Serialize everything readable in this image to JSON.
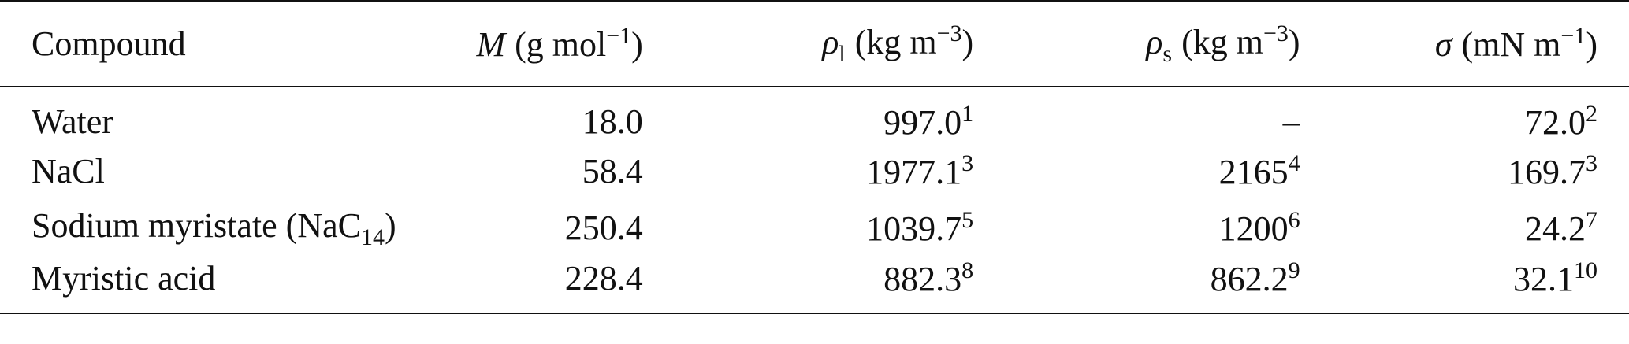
{
  "table": {
    "header": [
      [
        {
          "text": "Compound"
        }
      ],
      [
        {
          "text": "M",
          "style": "italic"
        },
        {
          "text": "(g mol",
          "style": "unit"
        },
        {
          "text": "−1",
          "style": "sup"
        },
        {
          "text": ")"
        }
      ],
      [
        {
          "text": "ρ",
          "style": "italic"
        },
        {
          "text": "l",
          "style": "sub"
        },
        {
          "text": "(kg m",
          "style": "unit"
        },
        {
          "text": "−3",
          "style": "sup"
        },
        {
          "text": ")"
        }
      ],
      [
        {
          "text": "ρ",
          "style": "italic"
        },
        {
          "text": "s",
          "style": "sub"
        },
        {
          "text": "(kg m",
          "style": "unit"
        },
        {
          "text": "−3",
          "style": "sup"
        },
        {
          "text": ")"
        }
      ],
      [
        {
          "text": "σ",
          "style": "italic"
        },
        {
          "text": "(mN m",
          "style": "unit"
        },
        {
          "text": "−1",
          "style": "sup"
        },
        {
          "text": ")"
        }
      ]
    ],
    "rows": [
      [
        [
          {
            "text": "Water"
          }
        ],
        [
          {
            "text": "18.0"
          }
        ],
        [
          {
            "text": "997.0"
          },
          {
            "text": "1",
            "style": "sup"
          }
        ],
        [
          {
            "text": "–"
          }
        ],
        [
          {
            "text": "72.0"
          },
          {
            "text": "2",
            "style": "sup"
          }
        ]
      ],
      [
        [
          {
            "text": "NaCl"
          }
        ],
        [
          {
            "text": "58.4"
          }
        ],
        [
          {
            "text": "1977.1"
          },
          {
            "text": "3",
            "style": "sup"
          }
        ],
        [
          {
            "text": "2165"
          },
          {
            "text": "4",
            "style": "sup"
          }
        ],
        [
          {
            "text": "169.7"
          },
          {
            "text": "3",
            "style": "sup"
          }
        ]
      ],
      [
        [
          {
            "text": "Sodium myristate (NaC"
          },
          {
            "text": "14",
            "style": "sub"
          },
          {
            "text": ")"
          }
        ],
        [
          {
            "text": "250.4"
          }
        ],
        [
          {
            "text": "1039.7"
          },
          {
            "text": "5",
            "style": "sup"
          }
        ],
        [
          {
            "text": "1200"
          },
          {
            "text": "6",
            "style": "sup"
          }
        ],
        [
          {
            "text": "24.2"
          },
          {
            "text": "7",
            "style": "sup"
          }
        ]
      ],
      [
        [
          {
            "text": "Myristic acid"
          }
        ],
        [
          {
            "text": "228.4"
          }
        ],
        [
          {
            "text": "882.3"
          },
          {
            "text": "8",
            "style": "sup"
          }
        ],
        [
          {
            "text": "862.2"
          },
          {
            "text": "9",
            "style": "sup"
          }
        ],
        [
          {
            "text": "32.1"
          },
          {
            "text": "10",
            "style": "sup"
          }
        ]
      ]
    ]
  }
}
